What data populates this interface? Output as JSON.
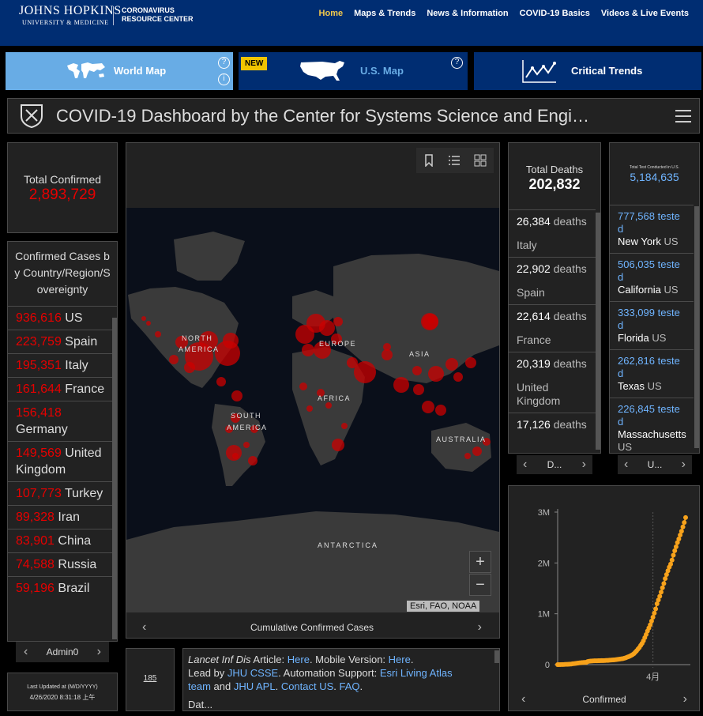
{
  "header": {
    "logo_name": "JOHNS HOPKINS",
    "logo_sub": "UNIVERSITY & MEDICINE",
    "logo_crc_line1": "CORONAVIRUS",
    "logo_crc_line2": "RESOURCE CENTER",
    "nav": [
      "Home",
      "Maps & Trends",
      "News & Information",
      "COVID-19 Basics",
      "Videos & Live Events"
    ]
  },
  "tabs": {
    "world": "World Map",
    "us": "U.S. Map",
    "us_badge": "NEW",
    "trends": "Critical Trends"
  },
  "dashboard": {
    "title": "COVID-19 Dashboard by the Center for Systems Science and Engi…"
  },
  "confirmed": {
    "label": "Total Confirmed",
    "value": "2,893,729"
  },
  "country_list": {
    "header": "Confirmed Cases by Country/Region/Sovereignty",
    "items": [
      {
        "num": "936,616",
        "name": "US"
      },
      {
        "num": "223,759",
        "name": "Spain"
      },
      {
        "num": "195,351",
        "name": "Italy"
      },
      {
        "num": "161,644",
        "name": "France"
      },
      {
        "num": "156,418",
        "name": "Germany"
      },
      {
        "num": "149,569",
        "name": "United Kingdom"
      },
      {
        "num": "107,773",
        "name": "Turkey"
      },
      {
        "num": "89,328",
        "name": "Iran"
      },
      {
        "num": "83,901",
        "name": "China"
      },
      {
        "num": "74,588",
        "name": "Russia"
      },
      {
        "num": "59,196",
        "name": "Brazil"
      }
    ],
    "pager": "Admin0"
  },
  "last_updated": {
    "label": "Last Updated at (M/D/YYYY)",
    "value": "4/26/2020 8:31:18 上午"
  },
  "count_box": "185",
  "map": {
    "caption": "Cumulative Confirmed Cases",
    "attribution": "Esri, FAO, NOAA",
    "labels": [
      "NORTH AMERICA",
      "EUROPE",
      "ASIA",
      "AFRICA",
      "SOUTH AMERICA",
      "AUSTRALIA",
      "ANTARCTICA"
    ],
    "zoom_in": "+",
    "zoom_out": "−"
  },
  "info": {
    "line1_prefix": "Lancet Inf Dis",
    "line1_text": " Article: ",
    "line1_link": "Here",
    "line1_mid": ". Mobile Version: ",
    "line1_link2": "Here",
    "line1_end": ".",
    "line2_text": "Lead by ",
    "line2_link": "JHU CSSE",
    "line2_mid": ". Automation Support: ",
    "line2_link2": "Esri Living Atlas",
    "line3_link": "team",
    "line3_mid": " and ",
    "line3_link2": "JHU APL",
    "line3_mid2": ". ",
    "line3_link3": "Contact US",
    "line3_mid3": ". ",
    "line3_link4": "FAQ",
    "line3_end": ".",
    "line4": "Dat..."
  },
  "deaths": {
    "label": "Total Deaths",
    "value": "202,832",
    "items": [
      {
        "num": "26,384",
        "unit": "deaths",
        "country": "Italy"
      },
      {
        "num": "22,902",
        "unit": "deaths",
        "country": "Spain"
      },
      {
        "num": "22,614",
        "unit": "deaths",
        "country": "France"
      },
      {
        "num": "20,319",
        "unit": "deaths",
        "country": "United Kingdom"
      },
      {
        "num": "17,126",
        "unit": "deaths",
        "country": ""
      }
    ],
    "pager": "D..."
  },
  "tests": {
    "label": "Total Test Conducted in U.S.",
    "value": "5,184,635",
    "items": [
      {
        "num": "777,568",
        "unit": "tested",
        "state": "New York",
        "country": "US"
      },
      {
        "num": "506,035",
        "unit": "tested",
        "state": "California",
        "country": "US"
      },
      {
        "num": "333,099",
        "unit": "tested",
        "state": "Florida",
        "country": "US"
      },
      {
        "num": "262,816",
        "unit": "tested",
        "state": "Texas",
        "country": "US"
      },
      {
        "num": "226,845",
        "unit": "tested",
        "state": "Massachusetts",
        "country": "US"
      }
    ],
    "pager": "U..."
  },
  "chart_data": {
    "type": "line",
    "title": "",
    "xlabel": "Confirmed",
    "ylabel": "",
    "yticks": [
      "3M",
      "2M",
      "1M",
      "0"
    ],
    "xticks": [
      "4月"
    ],
    "ylim": [
      0,
      3000000
    ],
    "series": [
      {
        "values": [
          555,
          654,
          941,
          1434,
          2118,
          2927,
          5578,
          6166,
          8234,
          9927,
          12038,
          16787,
          19881,
          23892,
          27635,
          30817,
          34391,
          37120,
          40150,
          42762,
          44802,
          45221,
          60368,
          66885,
          69030,
          71224,
          73258,
          75136,
          75639,
          76197,
          76819,
          78572,
          78958,
          79561,
          80406,
          81388,
          82746,
          84112,
          86604,
          88585,
          90443,
          93016,
          95314,
          98425,
          102050,
          106099,
          109991,
          114381,
          118948,
          126214,
          134509,
          145205,
          156101,
          167454,
          181574,
          197102,
          214821,
          242570,
          272208,
          304507,
          336953,
          378235,
          418045,
          467653,
          529591,
          593291,
          660693,
          720117,
          782365,
          857487,
          932605,
          1013157,
          1095917,
          1197405,
          1272115,
          1345101,
          1426096,
          1511104,
          1595350,
          1691719,
          1771514,
          1846680,
          1917320,
          1976191,
          2056055,
          2152437,
          2240190,
          2317759,
          2401378,
          2472259,
          2549294,
          2624610,
          2708885,
          2795735,
          2893729
        ]
      }
    ],
    "color": "#f7a21b"
  },
  "colors": {
    "jhu_blue": "#002d72",
    "tab_light": "#68ace5",
    "badge": "#f1c400",
    "confirmed_red": "#e60000",
    "test_blue": "#6fb4ff",
    "accent": "#f2c94c"
  }
}
